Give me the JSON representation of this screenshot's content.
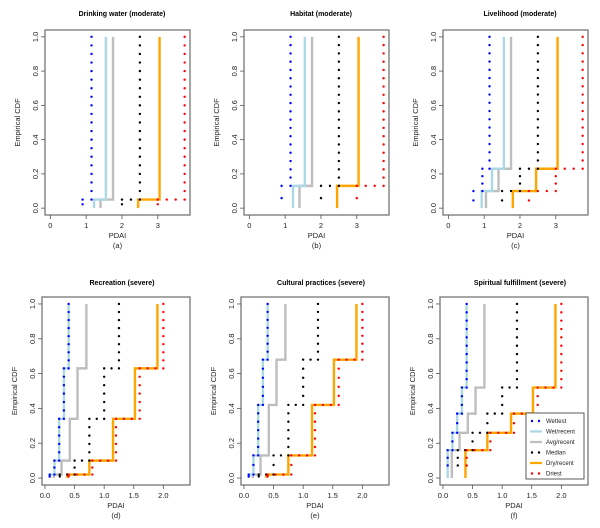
{
  "figure": {
    "legend_entries": [
      {
        "name": "Wettest",
        "color": "#0000ff",
        "style": "dotted-points"
      },
      {
        "name": "Wet/recent",
        "color": "#add8e6",
        "style": "line"
      },
      {
        "name": "Avg/recent",
        "color": "#bebebe",
        "style": "line"
      },
      {
        "name": "Median",
        "color": "#000000",
        "style": "dotted-points"
      },
      {
        "name": "Dry/recent",
        "color": "#ffa500",
        "style": "line"
      },
      {
        "name": "Driest",
        "color": "#ff0000",
        "style": "dotted-points"
      }
    ]
  },
  "chart_data": [
    {
      "type": "line",
      "subtype": "step-ecdf",
      "title": "Drinking water (moderate)",
      "panel_label": "(a)",
      "xlabel": "PDAI",
      "ylabel": "Empirical CDF",
      "xlim": [
        -0.15,
        3.9
      ],
      "ylim": [
        -0.04,
        1.04
      ],
      "xticks": [
        0,
        1,
        2,
        3
      ],
      "xtick_labels": [
        "0",
        "1",
        "2",
        "3"
      ],
      "yticks": [
        0.0,
        0.2,
        0.4,
        0.6,
        0.8,
        1.0
      ],
      "ytick_labels": [
        "0.0",
        "0.2",
        "0.4",
        "0.6",
        "0.8",
        "1.0"
      ],
      "levels": [
        0.05,
        1.0
      ],
      "series": [
        {
          "name": "Wettest",
          "x": [
            0.9,
            1.15
          ]
        },
        {
          "name": "Wet/recent",
          "x": [
            1.22,
            1.55
          ]
        },
        {
          "name": "Avg/recent",
          "x": [
            1.4,
            1.75
          ]
        },
        {
          "name": "Median",
          "x": [
            2.0,
            2.5
          ]
        },
        {
          "name": "Dry/recent",
          "x": [
            2.45,
            3.05
          ]
        },
        {
          "name": "Driest",
          "x": [
            3.0,
            3.75
          ]
        }
      ],
      "legend": false
    },
    {
      "type": "line",
      "subtype": "step-ecdf",
      "title": "Habitat (moderate)",
      "panel_label": "(b)",
      "xlabel": "PDAI",
      "ylabel": "Empirical CDF",
      "xlim": [
        -0.15,
        3.9
      ],
      "ylim": [
        -0.04,
        1.04
      ],
      "xticks": [
        0,
        1,
        2,
        3
      ],
      "xtick_labels": [
        "0",
        "1",
        "2",
        "3"
      ],
      "yticks": [
        0.0,
        0.2,
        0.4,
        0.6,
        0.8,
        1.0
      ],
      "ytick_labels": [
        "0.0",
        "0.2",
        "0.4",
        "0.6",
        "0.8",
        "1.0"
      ],
      "levels": [
        0.13,
        1.0
      ],
      "series": [
        {
          "name": "Wettest",
          "x": [
            0.9,
            1.15
          ]
        },
        {
          "name": "Wet/recent",
          "x": [
            1.22,
            1.55
          ]
        },
        {
          "name": "Avg/recent",
          "x": [
            1.4,
            1.75
          ]
        },
        {
          "name": "Median",
          "x": [
            2.0,
            2.5
          ]
        },
        {
          "name": "Dry/recent",
          "x": [
            2.45,
            3.05
          ]
        },
        {
          "name": "Driest",
          "x": [
            3.0,
            3.75
          ]
        }
      ],
      "legend": false
    },
    {
      "type": "line",
      "subtype": "step-ecdf",
      "title": "Livelihood (moderate)",
      "panel_label": "(c)",
      "xlabel": "PDAI",
      "ylabel": "Empirical CDF",
      "xlim": [
        -0.15,
        3.9
      ],
      "ylim": [
        -0.04,
        1.04
      ],
      "xticks": [
        0,
        1,
        2,
        3
      ],
      "xtick_labels": [
        "0",
        "1",
        "2",
        "3"
      ],
      "yticks": [
        0.0,
        0.2,
        0.4,
        0.6,
        0.8,
        1.0
      ],
      "ytick_labels": [
        "0.0",
        "0.2",
        "0.4",
        "0.6",
        "0.8",
        "1.0"
      ],
      "levels": [
        0.1,
        0.23,
        1.0
      ],
      "series": [
        {
          "name": "Wettest",
          "x": [
            0.7,
            0.95,
            1.15
          ]
        },
        {
          "name": "Wet/recent",
          "x": [
            0.93,
            1.22,
            1.55
          ]
        },
        {
          "name": "Avg/recent",
          "x": [
            1.05,
            1.4,
            1.75
          ]
        },
        {
          "name": "Median",
          "x": [
            1.5,
            2.0,
            2.5
          ]
        },
        {
          "name": "Dry/recent",
          "x": [
            1.8,
            2.45,
            3.05
          ]
        },
        {
          "name": "Driest",
          "x": [
            2.25,
            3.0,
            3.75
          ]
        }
      ],
      "legend": false
    },
    {
      "type": "line",
      "subtype": "step-ecdf",
      "title": "Recreation (severe)",
      "panel_label": "(d)",
      "xlabel": "PDAI",
      "ylabel": "Empirical CDF",
      "xlim": [
        -0.05,
        2.45
      ],
      "ylim": [
        -0.04,
        1.04
      ],
      "xticks": [
        0.0,
        0.5,
        1.0,
        1.5,
        2.0
      ],
      "xtick_labels": [
        "0.0",
        "0.5",
        "1.0",
        "1.5",
        "2.0"
      ],
      "yticks": [
        0.0,
        0.2,
        0.4,
        0.6,
        0.8,
        1.0
      ],
      "ytick_labels": [
        "0.0",
        "0.2",
        "0.4",
        "0.6",
        "0.8",
        "1.0"
      ],
      "levels": [
        0.02,
        0.1,
        0.34,
        0.63,
        1.0
      ],
      "series": [
        {
          "name": "Wettest",
          "x": [
            0.08,
            0.16,
            0.24,
            0.32,
            0.4
          ]
        },
        {
          "name": "Wet/recent",
          "x": [
            0.08,
            0.16,
            0.24,
            0.32,
            0.4
          ]
        },
        {
          "name": "Avg/recent",
          "x": [
            0.15,
            0.28,
            0.42,
            0.55,
            0.7
          ]
        },
        {
          "name": "Median",
          "x": [
            0.25,
            0.5,
            0.75,
            1.0,
            1.25
          ]
        },
        {
          "name": "Dry/recent",
          "x": [
            0.38,
            0.75,
            1.15,
            1.52,
            1.9
          ]
        },
        {
          "name": "Driest",
          "x": [
            0.4,
            0.8,
            1.2,
            1.6,
            2.0
          ]
        }
      ],
      "legend": false
    },
    {
      "type": "line",
      "subtype": "step-ecdf",
      "title": "Cultural practices (severe)",
      "panel_label": "(e)",
      "xlabel": "PDAI",
      "ylabel": "Empirical CDF",
      "xlim": [
        -0.05,
        2.45
      ],
      "ylim": [
        -0.04,
        1.04
      ],
      "xticks": [
        0.0,
        0.5,
        1.0,
        1.5,
        2.0
      ],
      "xtick_labels": [
        "0.0",
        "0.5",
        "1.0",
        "1.5",
        "2.0"
      ],
      "yticks": [
        0.0,
        0.2,
        0.4,
        0.6,
        0.8,
        1.0
      ],
      "ytick_labels": [
        "0.0",
        "0.2",
        "0.4",
        "0.6",
        "0.8",
        "1.0"
      ],
      "levels": [
        0.02,
        0.13,
        0.42,
        0.68,
        1.0
      ],
      "series": [
        {
          "name": "Wettest",
          "x": [
            0.08,
            0.16,
            0.24,
            0.32,
            0.4
          ]
        },
        {
          "name": "Wet/recent",
          "x": [
            0.08,
            0.16,
            0.24,
            0.32,
            0.4
          ]
        },
        {
          "name": "Avg/recent",
          "x": [
            0.15,
            0.28,
            0.42,
            0.55,
            0.7
          ]
        },
        {
          "name": "Median",
          "x": [
            0.25,
            0.5,
            0.75,
            1.0,
            1.25
          ]
        },
        {
          "name": "Dry/recent",
          "x": [
            0.38,
            0.75,
            1.15,
            1.52,
            1.9
          ]
        },
        {
          "name": "Driest",
          "x": [
            0.4,
            0.8,
            1.2,
            1.6,
            2.0
          ]
        }
      ],
      "legend": false
    },
    {
      "type": "line",
      "subtype": "step-ecdf",
      "title": "Spiritual fulfillment (severe)",
      "panel_label": "(f)",
      "xlabel": "PDAI",
      "ylabel": "Empirical CDF",
      "xlim": [
        -0.05,
        2.45
      ],
      "ylim": [
        -0.04,
        1.04
      ],
      "xticks": [
        0.0,
        0.5,
        1.0,
        1.5,
        2.0
      ],
      "xtick_labels": [
        "0.0",
        "0.5",
        "1.0",
        "1.5",
        "2.0"
      ],
      "yticks": [
        0.0,
        0.2,
        0.4,
        0.6,
        0.8,
        1.0
      ],
      "ytick_labels": [
        "0.0",
        "0.2",
        "0.4",
        "0.6",
        "0.8",
        "1.0"
      ],
      "levels": [
        0.16,
        0.26,
        0.37,
        0.52,
        1.0
      ],
      "series": [
        {
          "name": "Wettest",
          "x": [
            0.08,
            0.16,
            0.24,
            0.32,
            0.4
          ]
        },
        {
          "name": "Wet/recent",
          "x": [
            0.08,
            0.16,
            0.24,
            0.32,
            0.4
          ]
        },
        {
          "name": "Avg/recent",
          "x": [
            0.15,
            0.28,
            0.42,
            0.55,
            0.7
          ]
        },
        {
          "name": "Median",
          "x": [
            0.25,
            0.5,
            0.75,
            1.0,
            1.25
          ]
        },
        {
          "name": "Dry/recent",
          "x": [
            0.38,
            0.75,
            1.15,
            1.52,
            1.9
          ]
        },
        {
          "name": "Driest",
          "x": [
            0.4,
            0.8,
            1.2,
            1.6,
            2.0
          ]
        }
      ],
      "legend": true,
      "legend_position": "bottom-right"
    }
  ]
}
